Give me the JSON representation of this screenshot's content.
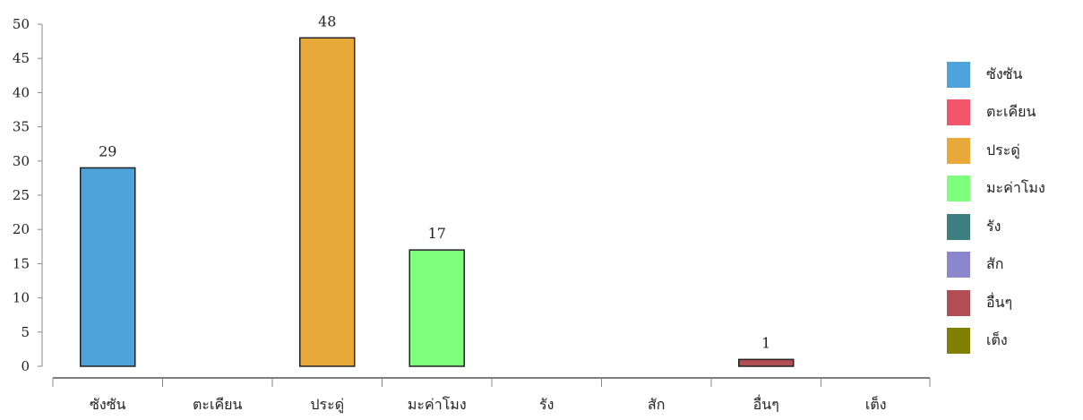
{
  "chart_data": {
    "type": "bar",
    "categories": [
      "ซังซัน",
      "ตะเคียน",
      "ประดู่",
      "มะค่าโมง",
      "รัง",
      "สัก",
      "อื่นๆ",
      "เต็ง"
    ],
    "values": [
      29,
      0,
      48,
      17,
      0,
      0,
      1,
      0
    ],
    "data_labels": [
      "29",
      "",
      "48",
      "17",
      "",
      "",
      "1",
      ""
    ],
    "colors": [
      "#4da3da",
      "#f2566b",
      "#e8a93b",
      "#7eff7e",
      "#3d7f7f",
      "#8c86cc",
      "#b14e55",
      "#808000"
    ],
    "ylim": [
      0,
      50
    ],
    "yticks": [
      0,
      5,
      10,
      15,
      20,
      25,
      30,
      35,
      40,
      45,
      50
    ],
    "legend": {
      "position": "right",
      "items": [
        {
          "label": "ซังซัน",
          "color": "#4da3da"
        },
        {
          "label": "ตะเคียน",
          "color": "#f2566b"
        },
        {
          "label": "ประดู่",
          "color": "#e8a93b"
        },
        {
          "label": "มะค่าโมง",
          "color": "#7eff7e"
        },
        {
          "label": "รัง",
          "color": "#3d7f7f"
        },
        {
          "label": "สัก",
          "color": "#8c86cc"
        },
        {
          "label": "อื่นๆ",
          "color": "#b14e55"
        },
        {
          "label": "เต็ง",
          "color": "#808000"
        }
      ]
    }
  }
}
